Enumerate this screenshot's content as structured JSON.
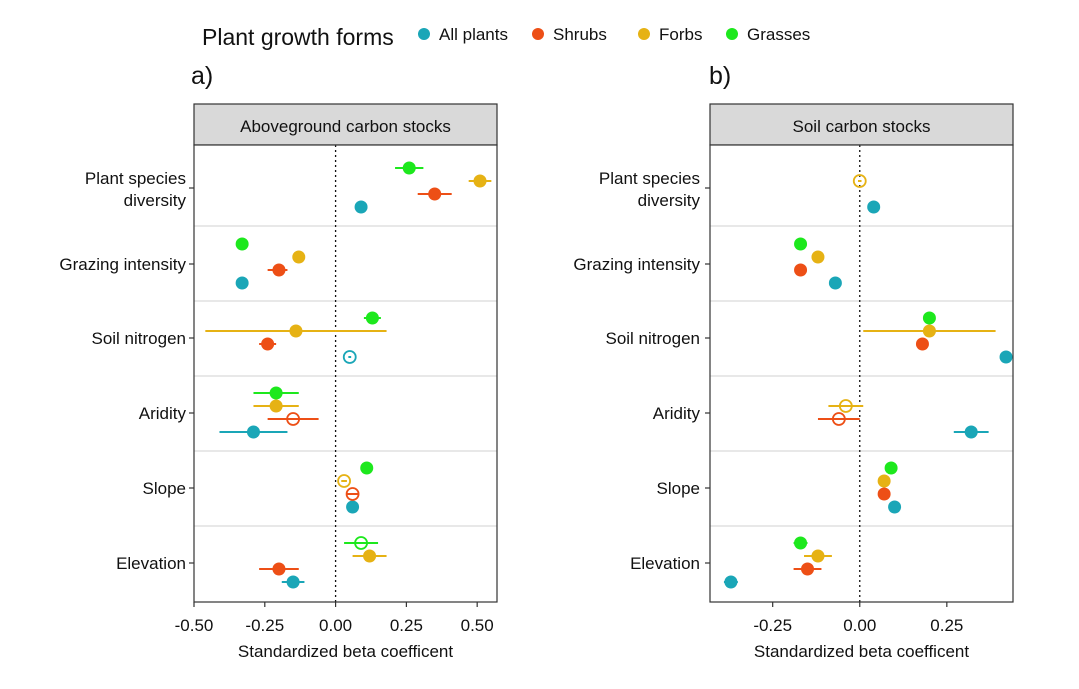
{
  "legend": {
    "title": "Plant growth forms",
    "entries": [
      {
        "name": "All plants",
        "color": "#1aa6b7"
      },
      {
        "name": "Shrubs",
        "color": "#ed4f16"
      },
      {
        "name": "Forbs",
        "color": "#e6b214"
      },
      {
        "name": "Grasses",
        "color": "#1de81d"
      }
    ]
  },
  "chart_data": [
    {
      "type": "scatter",
      "panel_label": "a)",
      "title": "Aboveground carbon stocks",
      "xlabel": "Standardized beta coefficent",
      "xlim": [
        -0.5,
        0.57
      ],
      "xticks": [
        -0.5,
        -0.25,
        0.0,
        0.25,
        0.5
      ],
      "xtick_labels": [
        "-0.50",
        "-0.25",
        "0.00",
        "0.25",
        "0.50"
      ],
      "categories": [
        "Plant species diversity",
        "Grazing intensity",
        "Soil nitrogen",
        "Aridity",
        "Slope",
        "Elevation"
      ],
      "category_labels": [
        [
          "Plant species",
          "diversity"
        ],
        [
          "Grazing intensity"
        ],
        [
          "Soil nitrogen"
        ],
        [
          "Aridity"
        ],
        [
          "Slope"
        ],
        [
          "Elevation"
        ]
      ],
      "series": [
        {
          "name": "All plants",
          "points": [
            {
              "est": 0.09,
              "lo": 0.07,
              "hi": 0.11,
              "sig": true
            },
            {
              "est": -0.33,
              "lo": -0.345,
              "hi": -0.315,
              "sig": true
            },
            {
              "est": 0.05,
              "lo": 0.045,
              "hi": 0.055,
              "sig": false
            },
            {
              "est": -0.29,
              "lo": -0.41,
              "hi": -0.17,
              "sig": true
            },
            {
              "est": 0.06,
              "lo": 0.045,
              "hi": 0.075,
              "sig": true
            },
            {
              "est": -0.15,
              "lo": -0.19,
              "hi": -0.11,
              "sig": true
            }
          ]
        },
        {
          "name": "Shrubs",
          "points": [
            {
              "est": 0.35,
              "lo": 0.29,
              "hi": 0.41,
              "sig": true
            },
            {
              "est": -0.2,
              "lo": -0.24,
              "hi": -0.17,
              "sig": true
            },
            {
              "est": -0.24,
              "lo": -0.27,
              "hi": -0.21,
              "sig": true
            },
            {
              "est": -0.15,
              "lo": -0.24,
              "hi": -0.06,
              "sig": false
            },
            {
              "est": 0.06,
              "lo": 0.04,
              "hi": 0.08,
              "sig": false
            },
            {
              "est": -0.2,
              "lo": -0.27,
              "hi": -0.13,
              "sig": true
            }
          ]
        },
        {
          "name": "Forbs",
          "points": [
            {
              "est": 0.51,
              "lo": 0.47,
              "hi": 0.55,
              "sig": true
            },
            {
              "est": -0.13,
              "lo": -0.145,
              "hi": -0.115,
              "sig": true
            },
            {
              "est": -0.14,
              "lo": -0.46,
              "hi": 0.18,
              "sig": true
            },
            {
              "est": -0.21,
              "lo": -0.29,
              "hi": -0.13,
              "sig": true
            },
            {
              "est": 0.03,
              "lo": 0.02,
              "hi": 0.04,
              "sig": false
            },
            {
              "est": 0.12,
              "lo": 0.06,
              "hi": 0.18,
              "sig": true
            }
          ]
        },
        {
          "name": "Grasses",
          "points": [
            {
              "est": 0.26,
              "lo": 0.21,
              "hi": 0.31,
              "sig": true
            },
            {
              "est": -0.33,
              "lo": -0.345,
              "hi": -0.315,
              "sig": true
            },
            {
              "est": 0.13,
              "lo": 0.1,
              "hi": 0.16,
              "sig": true
            },
            {
              "est": -0.21,
              "lo": -0.29,
              "hi": -0.13,
              "sig": true
            },
            {
              "est": 0.11,
              "lo": 0.095,
              "hi": 0.125,
              "sig": true
            },
            {
              "est": 0.09,
              "lo": 0.03,
              "hi": 0.15,
              "sig": false
            }
          ]
        }
      ]
    },
    {
      "type": "scatter",
      "panel_label": "b)",
      "title": "Soil carbon stocks",
      "xlabel": "Standardized beta coefficent",
      "xlim": [
        -0.43,
        0.44
      ],
      "xticks": [
        -0.25,
        0.0,
        0.25
      ],
      "xtick_labels": [
        "-0.25",
        "0.00",
        "0.25"
      ],
      "categories": [
        "Plant species diversity",
        "Grazing intensity",
        "Soil nitrogen",
        "Aridity",
        "Slope",
        "Elevation"
      ],
      "category_labels": [
        [
          "Plant species",
          "diversity"
        ],
        [
          "Grazing intensity"
        ],
        [
          "Soil nitrogen"
        ],
        [
          "Aridity"
        ],
        [
          "Slope"
        ],
        [
          "Elevation"
        ]
      ],
      "series": [
        {
          "name": "All plants",
          "points": [
            {
              "est": 0.04,
              "lo": 0.035,
              "hi": 0.045,
              "sig": true
            },
            {
              "est": -0.07,
              "lo": -0.075,
              "hi": -0.065,
              "sig": true
            },
            {
              "est": 0.42,
              "lo": 0.415,
              "hi": 0.425,
              "sig": true
            },
            {
              "est": 0.32,
              "lo": 0.27,
              "hi": 0.37,
              "sig": true
            },
            {
              "est": 0.1,
              "lo": 0.095,
              "hi": 0.105,
              "sig": true
            },
            {
              "est": -0.37,
              "lo": -0.39,
              "hi": -0.35,
              "sig": true
            }
          ]
        },
        {
          "name": "Shrubs",
          "points": [
            {
              "est": null,
              "lo": null,
              "hi": null,
              "sig": true
            },
            {
              "est": -0.17,
              "lo": -0.175,
              "hi": -0.165,
              "sig": true
            },
            {
              "est": 0.18,
              "lo": 0.175,
              "hi": 0.185,
              "sig": true
            },
            {
              "est": -0.06,
              "lo": -0.12,
              "hi": 0.0,
              "sig": false
            },
            {
              "est": 0.07,
              "lo": 0.065,
              "hi": 0.075,
              "sig": true
            },
            {
              "est": -0.15,
              "lo": -0.19,
              "hi": -0.11,
              "sig": true
            }
          ]
        },
        {
          "name": "Forbs",
          "points": [
            {
              "est": 0.0,
              "lo": -0.005,
              "hi": 0.005,
              "sig": false
            },
            {
              "est": -0.12,
              "lo": -0.13,
              "hi": -0.11,
              "sig": true
            },
            {
              "est": 0.2,
              "lo": 0.01,
              "hi": 0.39,
              "sig": true
            },
            {
              "est": -0.04,
              "lo": -0.09,
              "hi": 0.01,
              "sig": false
            },
            {
              "est": 0.07,
              "lo": 0.065,
              "hi": 0.075,
              "sig": true
            },
            {
              "est": -0.12,
              "lo": -0.16,
              "hi": -0.08,
              "sig": true
            }
          ]
        },
        {
          "name": "Grasses",
          "points": [
            {
              "est": null,
              "lo": null,
              "hi": null,
              "sig": true
            },
            {
              "est": -0.17,
              "lo": -0.18,
              "hi": -0.16,
              "sig": true
            },
            {
              "est": 0.2,
              "lo": 0.195,
              "hi": 0.205,
              "sig": true
            },
            {
              "est": null,
              "lo": null,
              "hi": null,
              "sig": true
            },
            {
              "est": 0.09,
              "lo": 0.085,
              "hi": 0.095,
              "sig": true
            },
            {
              "est": -0.17,
              "lo": -0.19,
              "hi": -0.15,
              "sig": true
            }
          ]
        }
      ]
    }
  ]
}
